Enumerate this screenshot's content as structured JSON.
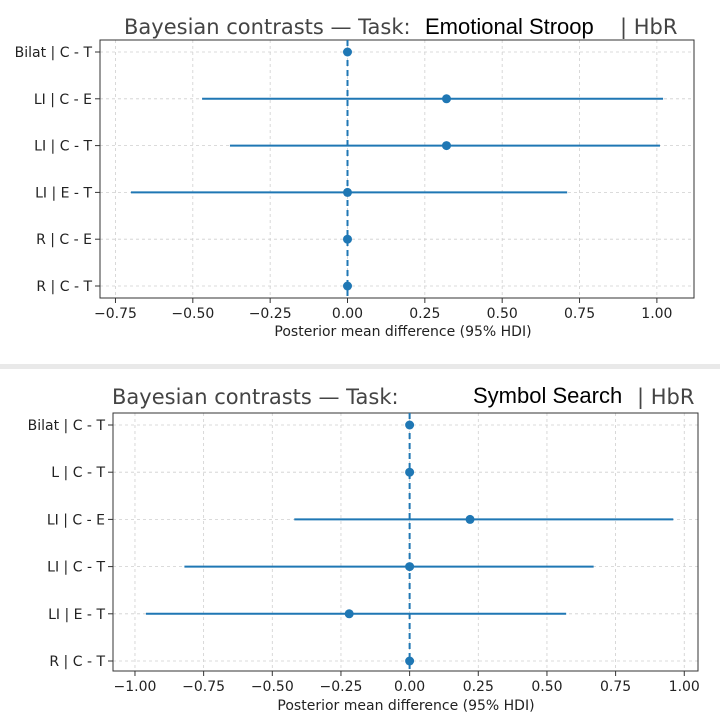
{
  "chart_data": [
    {
      "type": "scatter",
      "subtype": "forest-plot",
      "title_prefix": "Bayesian contrasts — Task:",
      "title_task": "Emotional Stroop",
      "title_suffix": "| HbR",
      "xlabel": "Posterior mean difference (95% HDI)",
      "xlim": [
        -0.8,
        1.12
      ],
      "xticks": [
        "−0.75",
        "−0.50",
        "−0.25",
        "0.00",
        "0.25",
        "0.50",
        "0.75",
        "1.00"
      ],
      "xtick_values": [
        -0.75,
        -0.5,
        -0.25,
        0,
        0.25,
        0.5,
        0.75,
        1.0
      ],
      "reference_line": 0,
      "grid": true,
      "color": "#1f77b4",
      "rows": [
        {
          "label": "Bilat | C - T",
          "mean": 0.0,
          "lo": 0.0,
          "hi": 0.0
        },
        {
          "label": "LI | C - E",
          "mean": 0.32,
          "lo": -0.47,
          "hi": 1.02
        },
        {
          "label": "LI | C - T",
          "mean": 0.32,
          "lo": -0.38,
          "hi": 1.01
        },
        {
          "label": "LI | E - T",
          "mean": 0.0,
          "lo": -0.7,
          "hi": 0.71
        },
        {
          "label": "R | C - E",
          "mean": 0.0,
          "lo": 0.0,
          "hi": 0.0
        },
        {
          "label": "R | C - T",
          "mean": 0.0,
          "lo": 0.0,
          "hi": 0.0
        }
      ]
    },
    {
      "type": "scatter",
      "subtype": "forest-plot",
      "title_prefix": "Bayesian contrasts — Task:",
      "title_task": "Symbol Search",
      "title_suffix": "| HbR",
      "xlabel": "Posterior mean difference (95% HDI)",
      "xlim": [
        -1.08,
        1.05
      ],
      "xticks": [
        "−1.00",
        "−0.75",
        "−0.50",
        "−0.25",
        "0.00",
        "0.25",
        "0.50",
        "0.75",
        "1.00"
      ],
      "xtick_values": [
        -1.0,
        -0.75,
        -0.5,
        -0.25,
        0,
        0.25,
        0.5,
        0.75,
        1.0
      ],
      "reference_line": 0,
      "grid": true,
      "color": "#1f77b4",
      "rows": [
        {
          "label": "Bilat | C - T",
          "mean": 0.0,
          "lo": 0.0,
          "hi": 0.0
        },
        {
          "label": "L | C - T",
          "mean": 0.0,
          "lo": 0.0,
          "hi": 0.0
        },
        {
          "label": "LI | C - E",
          "mean": 0.22,
          "lo": -0.42,
          "hi": 0.96
        },
        {
          "label": "LI | C - T",
          "mean": 0.0,
          "lo": -0.82,
          "hi": 0.67
        },
        {
          "label": "LI | E - T",
          "mean": -0.22,
          "lo": -0.96,
          "hi": 0.57
        },
        {
          "label": "R | C - T",
          "mean": 0.0,
          "lo": 0.0,
          "hi": 0.0
        }
      ]
    }
  ]
}
